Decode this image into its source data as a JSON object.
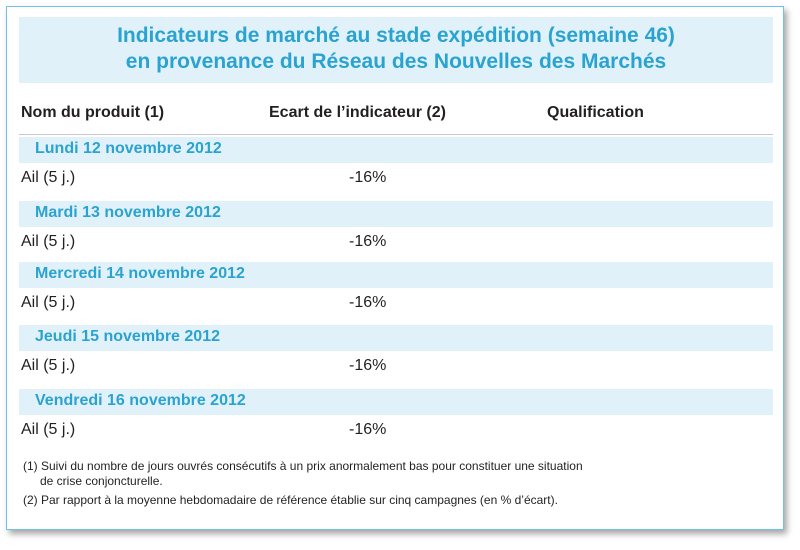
{
  "title": {
    "line1": "Indicateurs de marché au stade expédition (semaine 46)",
    "line2": "en provenance du Réseau des Nouvelles des Marchés"
  },
  "headers": {
    "product": "Nom du produit (1)",
    "indicator": "Ecart de l’indicateur (2)",
    "qualification": "Qualification"
  },
  "days": [
    {
      "label": "Lundi 12 novembre 2012",
      "product": "Ail (5 j.)",
      "value": "-16%",
      "qualification": ""
    },
    {
      "label": "Mardi 13 novembre 2012",
      "product": "Ail (5 j.)",
      "value": "-16%",
      "qualification": ""
    },
    {
      "label": "Mercredi 14 novembre 2012",
      "product": "Ail (5 j.)",
      "value": "-16%",
      "qualification": ""
    },
    {
      "label": "Jeudi 15 novembre 2012",
      "product": "Ail (5 j.)",
      "value": "-16%",
      "qualification": ""
    },
    {
      "label": "Vendredi 16 novembre 2012",
      "product": "Ail (5 j.)",
      "value": "-16%",
      "qualification": ""
    }
  ],
  "footnotes": {
    "note1_line1": "(1) Suivi du nombre de jours ouvrés consécutifs à un prix anormalement bas pour constituer une situation",
    "note1_line2": "de crise conjoncturelle.",
    "note2": "(2) Par rapport à la moyenne hebdomadaire de référence établie sur cinq campagnes (en % d’écart)."
  },
  "colors": {
    "accent": "#2aa3d1",
    "band": "#e1f1f9",
    "border": "#6fc3e0"
  }
}
